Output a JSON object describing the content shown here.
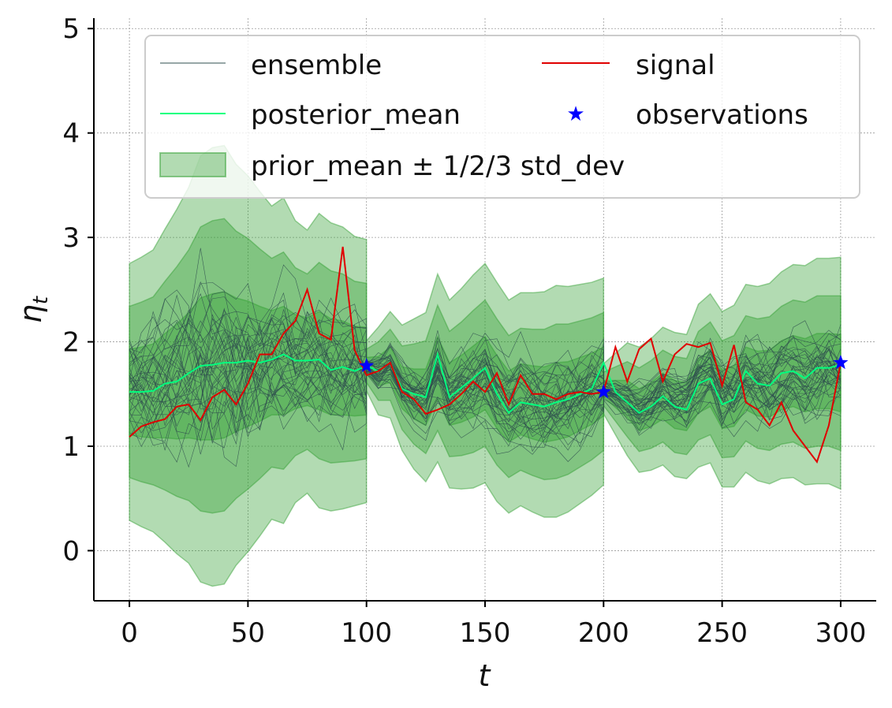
{
  "chart_data": {
    "type": "line",
    "title": "",
    "xlabel": "t",
    "ylabel": "η_t",
    "xlim": [
      -15,
      315
    ],
    "ylim": [
      -0.48,
      5.1
    ],
    "xticks": [
      0,
      50,
      100,
      150,
      200,
      250,
      300
    ],
    "yticks": [
      0,
      1,
      2,
      3,
      4,
      5
    ],
    "grid": true,
    "legend_position": "top-right",
    "legend": {
      "ensemble": "ensemble",
      "signal": "signal",
      "posterior_mean": "posterior_mean",
      "observations": "observations",
      "band": "prior_mean ± 1/2/3 std_dev"
    },
    "colors": {
      "ensemble": "#2f4f4f",
      "signal": "#e00000",
      "posterior_mean": "#00ff7f",
      "observations": "#0000ff",
      "band": "#2e9e2e"
    },
    "signal": {
      "x": [
        0,
        5,
        10,
        15,
        20,
        25,
        30,
        35,
        40,
        45,
        50,
        55,
        60,
        65,
        70,
        75,
        80,
        85,
        90,
        95,
        100,
        105,
        110,
        115,
        120,
        125,
        130,
        135,
        140,
        145,
        150,
        155,
        160,
        165,
        170,
        175,
        180,
        185,
        190,
        195,
        200,
        205,
        210,
        215,
        220,
        225,
        230,
        235,
        240,
        245,
        250,
        255,
        260,
        265,
        270,
        275,
        280,
        285,
        290,
        295,
        300
      ],
      "y": [
        1.09,
        1.19,
        1.23,
        1.26,
        1.38,
        1.4,
        1.25,
        1.47,
        1.54,
        1.4,
        1.6,
        1.88,
        1.88,
        2.08,
        2.2,
        2.5,
        2.08,
        2.02,
        2.91,
        1.92,
        1.68,
        1.72,
        1.8,
        1.52,
        1.45,
        1.31,
        1.35,
        1.4,
        1.5,
        1.62,
        1.52,
        1.7,
        1.4,
        1.68,
        1.5,
        1.5,
        1.45,
        1.5,
        1.52,
        1.5,
        1.52,
        1.95,
        1.62,
        1.93,
        2.03,
        1.62,
        1.88,
        1.98,
        1.95,
        1.99,
        1.58,
        1.97,
        1.42,
        1.35,
        1.2,
        1.42,
        1.15,
        1.0,
        0.85,
        1.2,
        1.8
      ]
    },
    "posterior_mean": {
      "x": [
        0,
        5,
        10,
        15,
        20,
        25,
        30,
        35,
        40,
        45,
        50,
        55,
        60,
        65,
        70,
        75,
        80,
        85,
        90,
        95,
        100,
        105,
        110,
        115,
        120,
        125,
        130,
        135,
        140,
        145,
        150,
        155,
        160,
        165,
        170,
        175,
        180,
        185,
        190,
        195,
        200,
        205,
        210,
        215,
        220,
        225,
        230,
        235,
        240,
        245,
        250,
        255,
        260,
        265,
        270,
        275,
        280,
        285,
        290,
        295,
        300
      ],
      "y": [
        1.52,
        1.52,
        1.53,
        1.6,
        1.62,
        1.7,
        1.77,
        1.78,
        1.8,
        1.8,
        1.82,
        1.8,
        1.83,
        1.88,
        1.82,
        1.82,
        1.83,
        1.73,
        1.76,
        1.72,
        1.77,
        1.72,
        1.8,
        1.55,
        1.5,
        1.47,
        1.88,
        1.47,
        1.56,
        1.65,
        1.75,
        1.5,
        1.32,
        1.42,
        1.4,
        1.38,
        1.42,
        1.45,
        1.5,
        1.55,
        1.8,
        1.52,
        1.42,
        1.32,
        1.38,
        1.48,
        1.38,
        1.35,
        1.6,
        1.65,
        1.4,
        1.45,
        1.72,
        1.6,
        1.58,
        1.7,
        1.72,
        1.65,
        1.75,
        1.75,
        1.78
      ]
    },
    "prior_band": {
      "segments": [
        {
          "x": [
            0,
            5,
            10,
            15,
            20,
            25,
            30,
            35,
            40,
            45,
            50,
            55,
            60,
            65,
            70,
            75,
            80,
            85,
            90,
            95,
            100
          ],
          "mean": [
            1.52,
            1.52,
            1.53,
            1.58,
            1.62,
            1.68,
            1.74,
            1.76,
            1.78,
            1.78,
            1.79,
            1.79,
            1.8,
            1.82,
            1.81,
            1.81,
            1.82,
            1.76,
            1.75,
            1.72,
            1.72
          ],
          "std": [
            0.41,
            0.43,
            0.45,
            0.5,
            0.55,
            0.6,
            0.68,
            0.7,
            0.7,
            0.64,
            0.6,
            0.55,
            0.5,
            0.52,
            0.45,
            0.42,
            0.47,
            0.46,
            0.45,
            0.43,
            0.42
          ]
        },
        {
          "x": [
            100,
            105,
            110,
            115,
            120,
            125,
            130,
            135,
            140,
            145,
            150,
            155,
            160,
            165,
            170,
            175,
            180,
            185,
            190,
            195,
            200
          ],
          "mean": [
            1.77,
            1.72,
            1.78,
            1.56,
            1.5,
            1.47,
            1.75,
            1.5,
            1.55,
            1.62,
            1.7,
            1.52,
            1.38,
            1.45,
            1.42,
            1.4,
            1.43,
            1.45,
            1.5,
            1.55,
            1.62
          ],
          "std": [
            0.08,
            0.14,
            0.17,
            0.2,
            0.24,
            0.27,
            0.3,
            0.3,
            0.32,
            0.34,
            0.35,
            0.35,
            0.34,
            0.34,
            0.35,
            0.36,
            0.37,
            0.36,
            0.35,
            0.34,
            0.33
          ]
        },
        {
          "x": [
            200,
            205,
            210,
            215,
            220,
            225,
            230,
            235,
            240,
            245,
            250,
            255,
            260,
            265,
            270,
            275,
            280,
            285,
            290,
            295,
            300
          ],
          "mean": [
            1.55,
            1.5,
            1.45,
            1.35,
            1.4,
            1.48,
            1.4,
            1.38,
            1.58,
            1.65,
            1.45,
            1.48,
            1.65,
            1.6,
            1.6,
            1.68,
            1.72,
            1.68,
            1.72,
            1.72,
            1.7
          ],
          "std": [
            0.08,
            0.13,
            0.18,
            0.2,
            0.21,
            0.22,
            0.23,
            0.23,
            0.26,
            0.27,
            0.28,
            0.29,
            0.3,
            0.31,
            0.32,
            0.33,
            0.34,
            0.35,
            0.36,
            0.36,
            0.37
          ]
        }
      ]
    },
    "observations": {
      "x": [
        100,
        200,
        300
      ],
      "y": [
        1.77,
        1.52,
        1.8
      ]
    },
    "ensemble_members": 40
  }
}
